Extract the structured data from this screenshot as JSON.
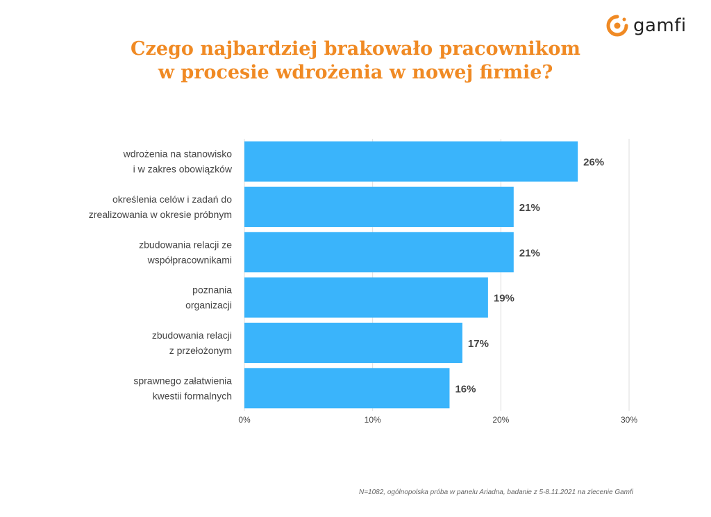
{
  "brand": {
    "name": "gamfi"
  },
  "colors": {
    "accent": "#f08a24",
    "bar": "#3ab4fb",
    "grid": "#dddddd",
    "label": "#444444",
    "value": "#444444"
  },
  "chart_data": {
    "type": "bar",
    "orientation": "horizontal",
    "title": [
      "Czego najbardziej brakowało pracownikom",
      "w procesie wdrożenia w nowej firmie?"
    ],
    "categories": [
      [
        "wdrożenia na stanowisko",
        "i w zakres obowiązków"
      ],
      [
        "określenia celów i zadań do",
        "zrealizowania w okresie próbnym"
      ],
      [
        "zbudowania relacji ze",
        "współpracownikami"
      ],
      [
        "poznania",
        "organizacji"
      ],
      [
        "zbudowania relacji",
        "z przełożonym"
      ],
      [
        "sprawnego załatwienia",
        "kwestii formalnych"
      ]
    ],
    "values": [
      26,
      21,
      21,
      19,
      17,
      16
    ],
    "value_labels": [
      "26%",
      "21%",
      "21%",
      "19%",
      "17%",
      "16%"
    ],
    "xlim": [
      0,
      30
    ],
    "xticks": [
      0,
      10,
      20,
      30
    ],
    "xtick_labels": [
      "0%",
      "10%",
      "20%",
      "30%"
    ],
    "grid": true,
    "legend": "none"
  },
  "footnote": "N=1082, ogólnopolska próba w panelu Ariadna, badanie z 5-8.11.2021 na zlecenie Gamfi"
}
